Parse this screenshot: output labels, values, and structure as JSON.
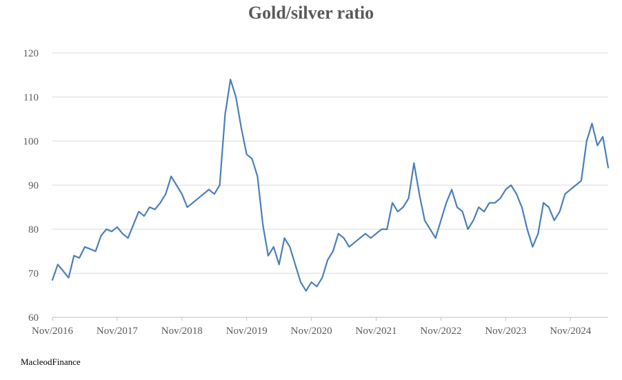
{
  "title": "Gold/silver ratio",
  "source": "MacleodFinance",
  "chart_data": {
    "type": "line",
    "title": "Gold/silver ratio",
    "xlabel": "",
    "ylabel": "",
    "ylim": [
      60,
      120
    ],
    "yticks": [
      60,
      70,
      80,
      90,
      100,
      110,
      120
    ],
    "xlim": [
      "2016-11",
      "2025-06"
    ],
    "xtick_labels": [
      "Nov/2016",
      "Nov/2017",
      "Nov/2018",
      "Nov/2019",
      "Nov/2020",
      "Nov/2021",
      "Nov/2022",
      "Nov/2023",
      "Nov/2024"
    ],
    "grid": "horizontal",
    "legend": "none",
    "line_color": "#4a7ebb",
    "series": [
      {
        "x": [
          "2016-11",
          "2016-12",
          "2017-01",
          "2017-02",
          "2017-03",
          "2017-04",
          "2017-05",
          "2017-06",
          "2017-07",
          "2017-08",
          "2017-09",
          "2017-10",
          "2017-11",
          "2017-12",
          "2018-01",
          "2018-02",
          "2018-03",
          "2018-04",
          "2018-05",
          "2018-06",
          "2018-07",
          "2018-08",
          "2018-09",
          "2018-10",
          "2018-11",
          "2018-12",
          "2019-01",
          "2019-02",
          "2019-03",
          "2019-04",
          "2019-05",
          "2019-06",
          "2019-07",
          "2019-08",
          "2019-09",
          "2019-10",
          "2019-11",
          "2019-12",
          "2020-01",
          "2020-02",
          "2020-03",
          "2020-04",
          "2020-05",
          "2020-06",
          "2020-07",
          "2020-08",
          "2020-09",
          "2020-10",
          "2020-11",
          "2020-12",
          "2021-01",
          "2021-02",
          "2021-03",
          "2021-04",
          "2021-05",
          "2021-06",
          "2021-07",
          "2021-08",
          "2021-09",
          "2021-10",
          "2021-11",
          "2021-12",
          "2022-01",
          "2022-02",
          "2022-03",
          "2022-04",
          "2022-05",
          "2022-06",
          "2022-07",
          "2022-08",
          "2022-09",
          "2022-10",
          "2022-11",
          "2022-12",
          "2023-01",
          "2023-02",
          "2023-03",
          "2023-04",
          "2023-05",
          "2023-06",
          "2023-07",
          "2023-08",
          "2023-09",
          "2023-10",
          "2023-11",
          "2023-12",
          "2024-01",
          "2024-02",
          "2024-03",
          "2024-04",
          "2024-05",
          "2024-06",
          "2024-07",
          "2024-08",
          "2024-09",
          "2024-10",
          "2024-11",
          "2024-12",
          "2025-01",
          "2025-02",
          "2025-03",
          "2025-04",
          "2025-05",
          "2025-06"
        ],
        "values": [
          68.5,
          72,
          70.5,
          69,
          74,
          73.5,
          76,
          75.5,
          75,
          78.5,
          80,
          79.5,
          80.5,
          79,
          78,
          81,
          84,
          83,
          85,
          84.5,
          86,
          88,
          92,
          90,
          88,
          85,
          86,
          87,
          88,
          89,
          88,
          90,
          106,
          114,
          110,
          103,
          97,
          96,
          92,
          81,
          74,
          76,
          72,
          78,
          76,
          72,
          68,
          66,
          68,
          67,
          69,
          73,
          75,
          79,
          78,
          76,
          77,
          78,
          79,
          78,
          79,
          80,
          80,
          86,
          84,
          85,
          87,
          95,
          88,
          82,
          80,
          78,
          82,
          86,
          89,
          85,
          84,
          80,
          82,
          85,
          84,
          86,
          86,
          87,
          89,
          90,
          88,
          85,
          80,
          76,
          79,
          86,
          85,
          82,
          84,
          88,
          89,
          90,
          91,
          100,
          104,
          99,
          101,
          94
        ]
      }
    ]
  }
}
